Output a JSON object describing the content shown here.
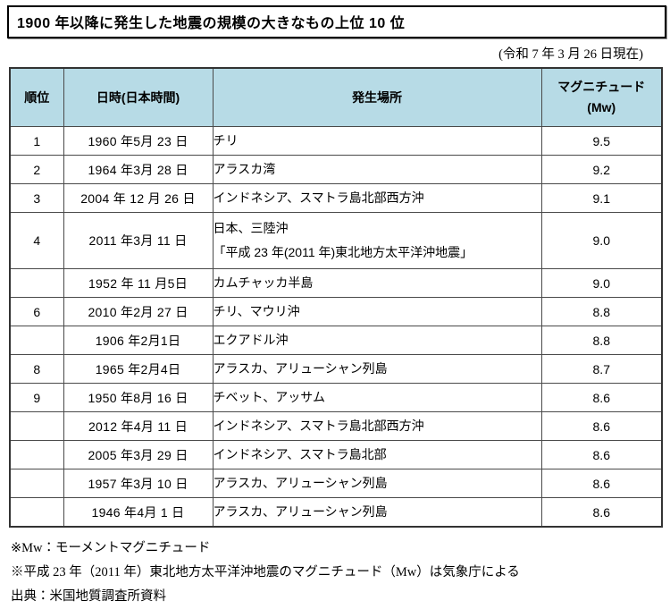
{
  "title": "1900 年以降に発生した地震の規模の大きなもの上位 10 位",
  "as_of": "(令和 7 年 3 月 26 日現在)",
  "colors": {
    "header_bg": "#b7dbe6",
    "border": "#4a4a4a",
    "outer_border": "#333333"
  },
  "table": {
    "header": {
      "rank": "順位",
      "date": "日時(日本時間)",
      "location": "発生場所",
      "magnitude": "マグニチュード",
      "magnitude_unit": "(Mw)"
    },
    "rows": [
      {
        "rank": "1",
        "date": "1960 年5月 23 日",
        "location": "チリ",
        "magnitude": "9.5"
      },
      {
        "rank": "2",
        "date": "1964 年3月 28 日",
        "location": "アラスカ湾",
        "magnitude": "9.2"
      },
      {
        "rank": "3",
        "date": "2004 年 12 月 26 日",
        "location": "インドネシア、スマトラ島北部西方沖",
        "magnitude": "9.1"
      },
      {
        "rank": "4",
        "date": "2011 年3月 11 日",
        "location": "日本、三陸沖",
        "location2": "「平成 23 年(2011 年)東北地方太平洋沖地震」",
        "magnitude": "9.0"
      },
      {
        "rank": "",
        "date": "1952 年 11 月5日",
        "location": "カムチャッカ半島",
        "magnitude": "9.0"
      },
      {
        "rank": "6",
        "date": "2010 年2月 27 日",
        "location": "チリ、マウリ沖",
        "magnitude": "8.8"
      },
      {
        "rank": "",
        "date": "1906 年2月1日",
        "location": "エクアドル沖",
        "magnitude": "8.8"
      },
      {
        "rank": "8",
        "date": "1965 年2月4日",
        "location": "アラスカ、アリューシャン列島",
        "magnitude": "8.7"
      },
      {
        "rank": "9",
        "date": "1950 年8月 16 日",
        "location": "チベット、アッサム",
        "magnitude": "8.6"
      },
      {
        "rank": "",
        "date": "2012 年4月 11 日",
        "location": "インドネシア、スマトラ島北部西方沖",
        "magnitude": "8.6"
      },
      {
        "rank": "",
        "date": "2005 年3月 29 日",
        "location": "インドネシア、スマトラ島北部",
        "magnitude": "8.6"
      },
      {
        "rank": "",
        "date": "1957 年3月 10 日",
        "location": "アラスカ、アリューシャン列島",
        "magnitude": "8.6"
      },
      {
        "rank": "",
        "date": "1946 年4月 1 日",
        "location": "アラスカ、アリューシャン列島",
        "magnitude": "8.6"
      }
    ]
  },
  "notes": [
    "※Mw：モーメントマグニチュード",
    "※平成 23 年（2011 年）東北地方太平洋沖地震のマグニチュード（Mw）は気象庁による",
    "出典：米国地質調査所資料"
  ]
}
